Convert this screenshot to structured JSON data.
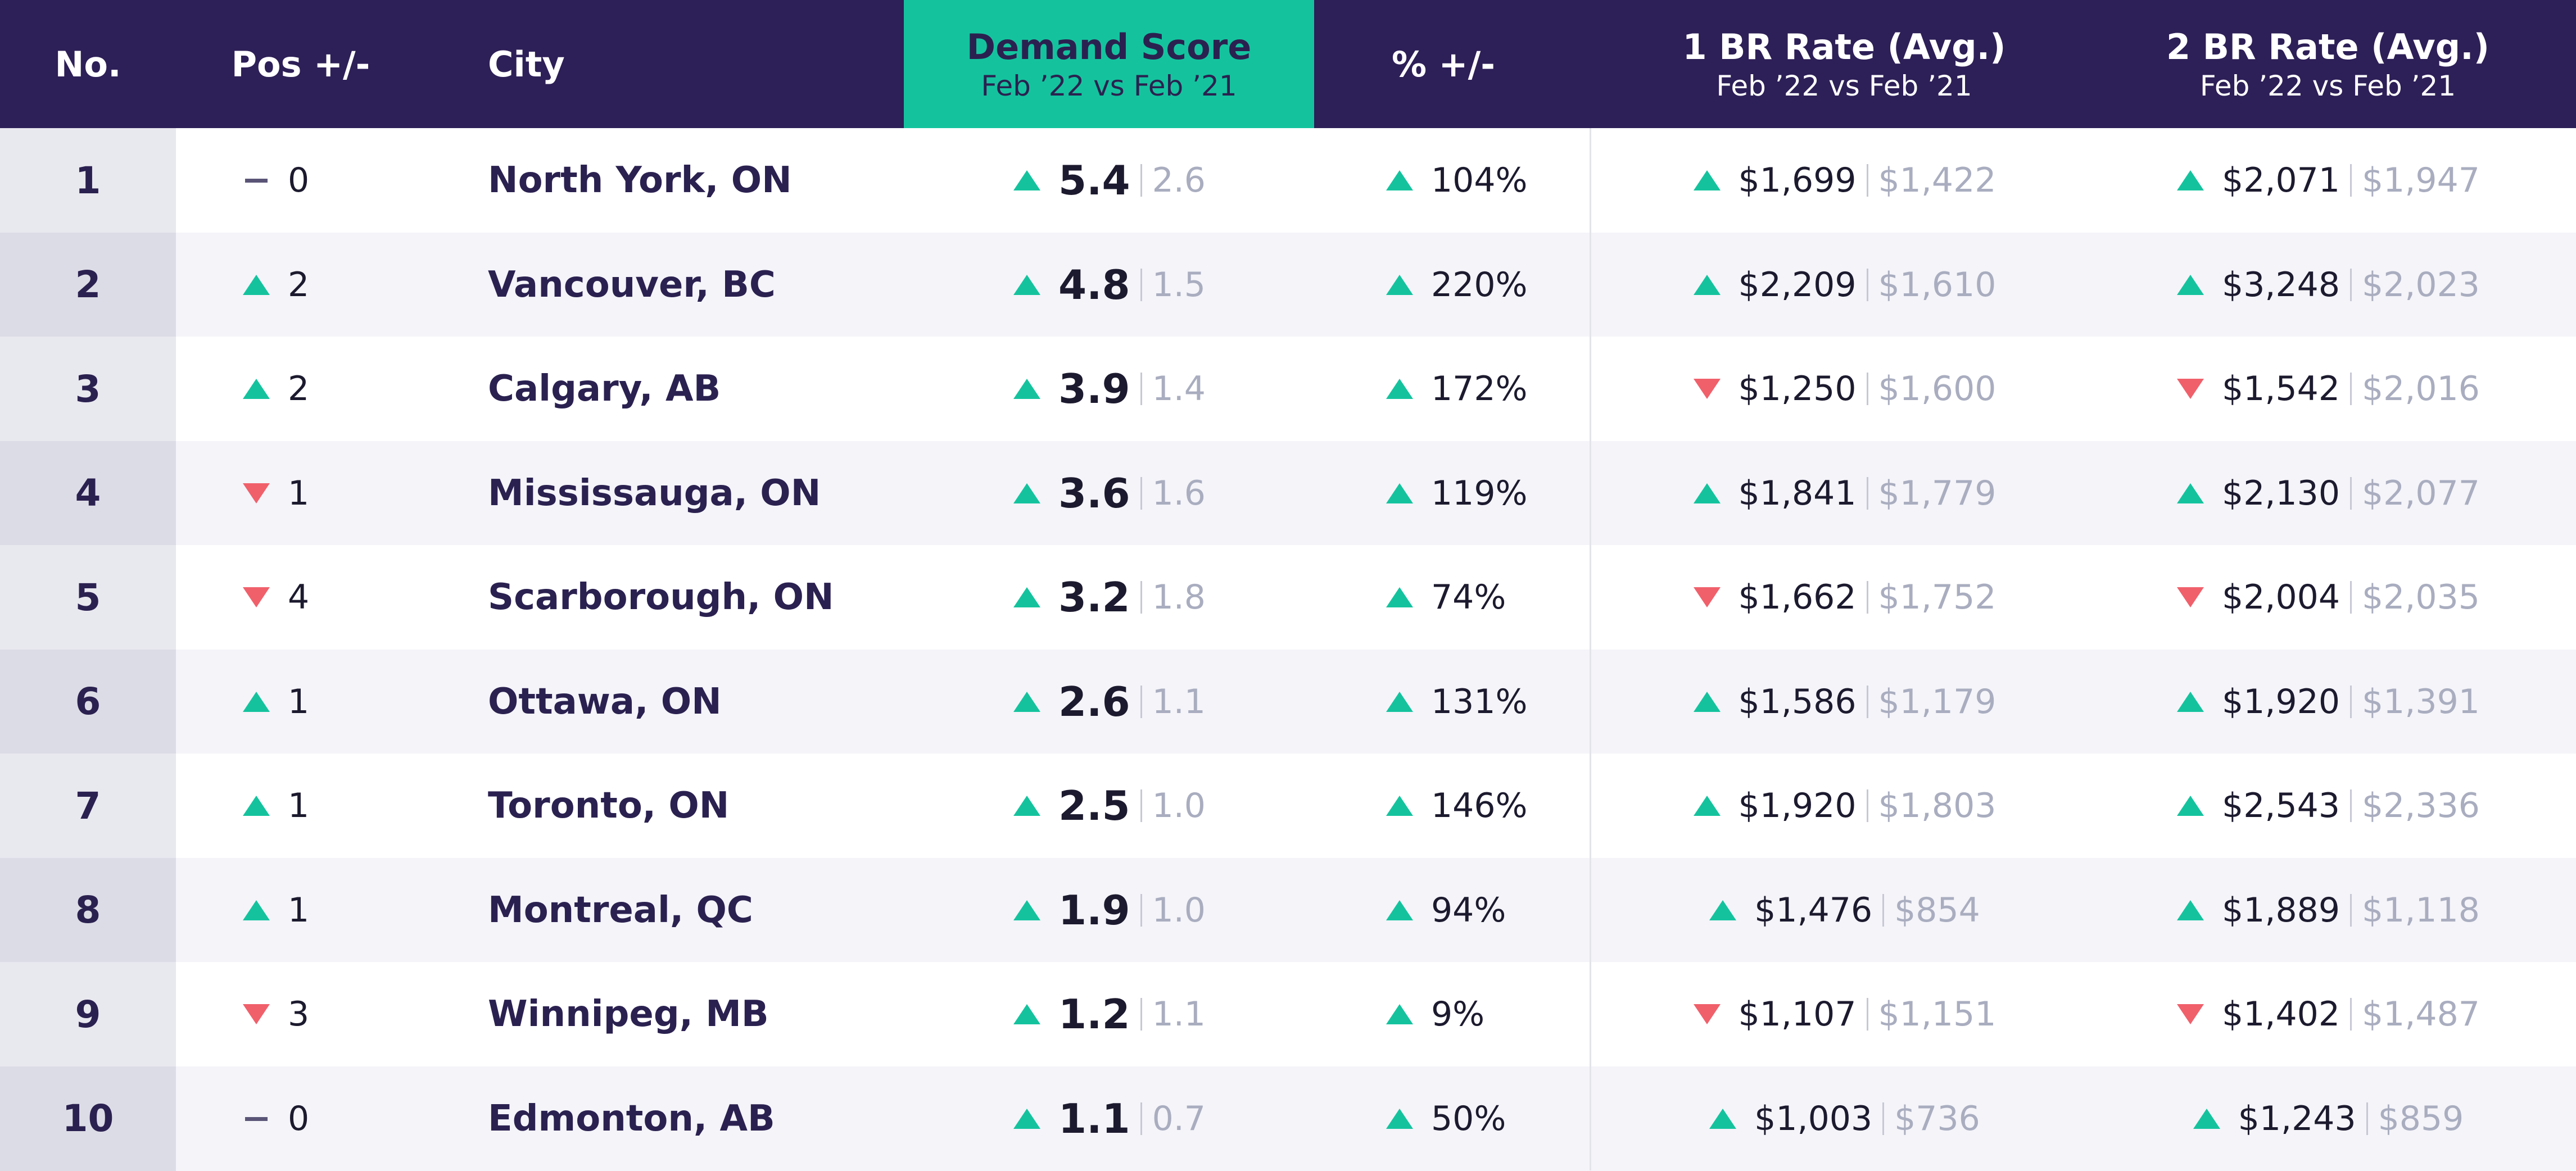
{
  "header": {
    "no": "No.",
    "pos": "Pos +/-",
    "city": "City",
    "demand": {
      "title": "Demand Score",
      "sub": "Feb ’22 vs Feb ’21"
    },
    "pct": "% +/-",
    "br1": {
      "title": "1 BR Rate (Avg.)",
      "sub": "Feb ’22 vs Feb ’21"
    },
    "br2": {
      "title": "2 BR Rate (Avg.)",
      "sub": "Feb ’22 vs Feb ’21"
    }
  },
  "rows": [
    {
      "no": "1",
      "pos_trend": "same",
      "pos": "0",
      "city": "North York, ON",
      "demand": "5.4",
      "demand_prev": "2.6",
      "pct": "104%",
      "br1_trend": "up",
      "br1": "$1,699",
      "br1_prev": "$1,422",
      "br2_trend": "up",
      "br2": "$2,071",
      "br2_prev": "$1,947"
    },
    {
      "no": "2",
      "pos_trend": "up",
      "pos": "2",
      "city": "Vancouver, BC",
      "demand": "4.8",
      "demand_prev": "1.5",
      "pct": "220%",
      "br1_trend": "up",
      "br1": "$2,209",
      "br1_prev": "$1,610",
      "br2_trend": "up",
      "br2": "$3,248",
      "br2_prev": "$2,023"
    },
    {
      "no": "3",
      "pos_trend": "up",
      "pos": "2",
      "city": "Calgary, AB",
      "demand": "3.9",
      "demand_prev": "1.4",
      "pct": "172%",
      "br1_trend": "down",
      "br1": "$1,250",
      "br1_prev": "$1,600",
      "br2_trend": "down",
      "br2": "$1,542",
      "br2_prev": "$2,016"
    },
    {
      "no": "4",
      "pos_trend": "down",
      "pos": "1",
      "city": "Mississauga, ON",
      "demand": "3.6",
      "demand_prev": "1.6",
      "pct": "119%",
      "br1_trend": "up",
      "br1": "$1,841",
      "br1_prev": "$1,779",
      "br2_trend": "up",
      "br2": "$2,130",
      "br2_prev": "$2,077"
    },
    {
      "no": "5",
      "pos_trend": "down",
      "pos": "4",
      "city": "Scarborough, ON",
      "demand": "3.2",
      "demand_prev": "1.8",
      "pct": "74%",
      "br1_trend": "down",
      "br1": "$1,662",
      "br1_prev": "$1,752",
      "br2_trend": "down",
      "br2": "$2,004",
      "br2_prev": "$2,035"
    },
    {
      "no": "6",
      "pos_trend": "up",
      "pos": "1",
      "city": "Ottawa, ON",
      "demand": "2.6",
      "demand_prev": "1.1",
      "pct": "131%",
      "br1_trend": "up",
      "br1": "$1,586",
      "br1_prev": "$1,179",
      "br2_trend": "up",
      "br2": "$1,920",
      "br2_prev": "$1,391"
    },
    {
      "no": "7",
      "pos_trend": "up",
      "pos": "1",
      "city": "Toronto, ON",
      "demand": "2.5",
      "demand_prev": "1.0",
      "pct": "146%",
      "br1_trend": "up",
      "br1": "$1,920",
      "br1_prev": "$1,803",
      "br2_trend": "up",
      "br2": "$2,543",
      "br2_prev": "$2,336"
    },
    {
      "no": "8",
      "pos_trend": "up",
      "pos": "1",
      "city": "Montreal, QC",
      "demand": "1.9",
      "demand_prev": "1.0",
      "pct": "94%",
      "br1_trend": "up",
      "br1": "$1,476",
      "br1_prev": "$854",
      "br2_trend": "up",
      "br2": "$1,889",
      "br2_prev": "$1,118"
    },
    {
      "no": "9",
      "pos_trend": "down",
      "pos": "3",
      "city": "Winnipeg, MB",
      "demand": "1.2",
      "demand_prev": "1.1",
      "pct": "9%",
      "br1_trend": "down",
      "br1": "$1,107",
      "br1_prev": "$1,151",
      "br2_trend": "down",
      "br2": "$1,402",
      "br2_prev": "$1,487"
    },
    {
      "no": "10",
      "pos_trend": "same",
      "pos": "0",
      "city": "Edmonton, AB",
      "demand": "1.1",
      "demand_prev": "0.7",
      "pct": "50%",
      "br1_trend": "up",
      "br1": "$1,003",
      "br1_prev": "$736",
      "br2_trend": "up",
      "br2": "$1,243",
      "br2_prev": "$859"
    }
  ]
}
